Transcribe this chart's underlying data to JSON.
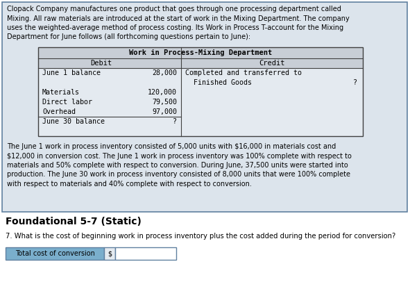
{
  "background_color": "#ffffff",
  "intro_text_lines": [
    "Clopack Company manufactures one product that goes through one processing department called",
    "Mixing. All raw materials are introduced at the start of work in the Mixing Department. The company",
    "uses the weighted-average method of process costing. Its Work in Process T-account for the Mixing",
    "Department for June follows (all forthcoming questions pertain to June):"
  ],
  "table_title": "Work in Process-Mixing Department",
  "col_debit": "Debit",
  "col_credit": "Credit",
  "debit_rows": [
    {
      "label": "June 1 balance",
      "value": "28,000"
    },
    {
      "label": "",
      "value": ""
    },
    {
      "label": "Materials",
      "value": "120,000"
    },
    {
      "label": "Direct labor",
      "value": "79,500"
    },
    {
      "label": "Overhead",
      "value": "97,000"
    },
    {
      "label": "June 30 balance",
      "value": "?"
    }
  ],
  "credit_line1": "Completed and transferred to",
  "credit_line2": "Finished Goods",
  "credit_val": "?",
  "body_text_lines": [
    "The June 1 work in process inventory consisted of 5,000 units with $16,000 in materials cost and",
    "$12,000 in conversion cost. The June 1 work in process inventory was 100% complete with respect to",
    "materials and 50% complete with respect to conversion. During June, 37,500 units were started into",
    "production. The June 30 work in process inventory consisted of 8,000 units that were 100% complete",
    "with respect to materials and 40% complete with respect to conversion."
  ],
  "section_title": "Foundational 5-7 (Static)",
  "question_text": "7. What is the cost of beginning work in process inventory plus the cost added during the period for conversion?",
  "answer_label": "Total cost of conversion",
  "answer_prefix": "$",
  "table_header_bg": "#c8ced6",
  "table_body_bg": "#e4eaf0",
  "answer_label_bg": "#7aaecc",
  "answer_box_bg": "#ffffff",
  "outer_box_bg": "#dce4ec",
  "outer_box_border": "#6080a0",
  "table_border": "#404040",
  "font_mono": "monospace",
  "font_sans": "DejaVu Sans"
}
